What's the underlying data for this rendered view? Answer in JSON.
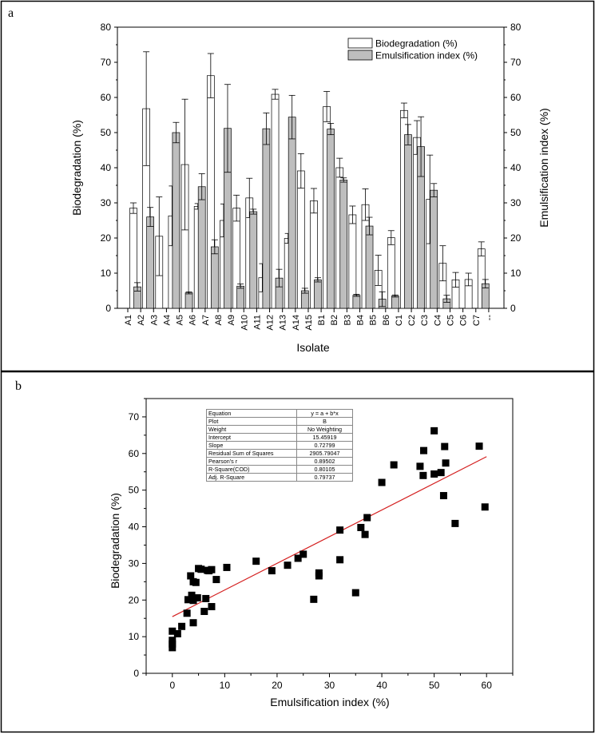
{
  "chart_data": [
    {
      "panel": "a",
      "type": "bar",
      "xlabel": "Isolate",
      "ylabel": "Biodegradation (%)",
      "y2label": "Emulsification index (%)",
      "ylim": [
        0,
        80
      ],
      "yticks": [
        "0",
        "10",
        "20",
        "30",
        "40",
        "50",
        "60",
        "70",
        "80"
      ],
      "categories": [
        "A1",
        "A2",
        "A3",
        "A4",
        "A5",
        "A6",
        "A7",
        "A8",
        "A9",
        "A10",
        "A11",
        "A12",
        "A13",
        "A14",
        "A15",
        "B1",
        "B2",
        "B3",
        "B4",
        "B5",
        "B6",
        "C1",
        "C2",
        "C3",
        "C4",
        "C5",
        "C6",
        "C7",
        "--"
      ],
      "legend_position": "top-right",
      "series": [
        {
          "name": "Biodegradation (%)",
          "color": "#ffffff",
          "values": [
            28.5,
            56.8,
            20.5,
            26.3,
            40.9,
            29,
            66.2,
            25,
            28.5,
            31.4,
            8.7,
            60.9,
            19.9,
            39.1,
            30.6,
            57.4,
            40,
            26.6,
            29.5,
            10.8,
            20.1,
            56.3,
            48.6,
            31,
            12.8,
            8.1,
            8.2,
            16.9,
            null
          ],
          "errors": [
            1.5,
            16.2,
            11.2,
            8.5,
            18.6,
            0.8,
            6.3,
            4.7,
            3.7,
            5.6,
            4,
            1.4,
            1.4,
            4.9,
            3.5,
            4.3,
            2.7,
            2.5,
            4.5,
            4.3,
            2,
            2.1,
            4.8,
            12.6,
            5,
            2.1,
            1.8,
            2,
            null
          ]
        },
        {
          "name": "Emulsification index (%)",
          "color": "#bebebe",
          "values": [
            6.1,
            26,
            null,
            50,
            4.4,
            34.6,
            17.5,
            51.2,
            6.3,
            27.5,
            51.1,
            8.6,
            54.4,
            5,
            8.1,
            51,
            36.5,
            3.7,
            23.4,
            2.6,
            3.5,
            49.4,
            46,
            33.6,
            2.7,
            null,
            null,
            7,
            null
          ],
          "errors": [
            1.2,
            2.7,
            null,
            2.9,
            0.3,
            3.7,
            2,
            12.5,
            0.6,
            0.7,
            4.5,
            2.5,
            6.2,
            0.7,
            0.6,
            1.6,
            0.6,
            0.3,
            2.5,
            2.1,
            0.3,
            2.9,
            8.5,
            1.9,
            1,
            null,
            null,
            1.2,
            null
          ]
        }
      ]
    },
    {
      "panel": "b",
      "type": "scatter",
      "xlabel": "Emulsification index (%)",
      "ylabel": "Biodegradation (%)",
      "xlim": [
        -5,
        65
      ],
      "ylim": [
        0,
        75
      ],
      "xticks": [
        "0",
        "10",
        "20",
        "30",
        "40",
        "50",
        "60"
      ],
      "yticks": [
        "0",
        "10",
        "20",
        "30",
        "40",
        "50",
        "60",
        "70"
      ],
      "line_color": "#d42020",
      "fit": {
        "intercept": 15.45919,
        "slope": 0.72799
      },
      "points": [
        [
          0,
          11.5
        ],
        [
          0,
          9
        ],
        [
          0,
          8
        ],
        [
          0,
          7
        ],
        [
          1,
          10.8
        ],
        [
          1.8,
          12.8
        ],
        [
          2.8,
          16.4
        ],
        [
          3,
          20.1
        ],
        [
          3.5,
          26.6
        ],
        [
          3.7,
          21.3
        ],
        [
          4,
          19.9
        ],
        [
          4,
          13.8
        ],
        [
          4,
          25
        ],
        [
          4.5,
          24.8
        ],
        [
          4.8,
          20.6
        ],
        [
          5,
          28.6
        ],
        [
          5.5,
          28.4
        ],
        [
          6.1,
          16.9
        ],
        [
          6.4,
          20.4
        ],
        [
          6.7,
          28.1
        ],
        [
          7,
          28
        ],
        [
          7.5,
          28.3
        ],
        [
          7.5,
          18.2
        ],
        [
          8.4,
          25.6
        ],
        [
          10.4,
          28.9
        ],
        [
          16,
          30.6
        ],
        [
          19,
          28
        ],
        [
          22,
          29.5
        ],
        [
          24,
          31.4
        ],
        [
          25,
          32.5
        ],
        [
          27,
          20.2
        ],
        [
          28,
          26.6
        ],
        [
          28,
          27.4
        ],
        [
          32,
          31
        ],
        [
          32,
          39.1
        ],
        [
          35,
          22
        ],
        [
          36,
          39.8
        ],
        [
          36.8,
          37.9
        ],
        [
          37.2,
          42.5
        ],
        [
          40,
          52.1
        ],
        [
          42.3,
          56.9
        ],
        [
          47.3,
          56.5
        ],
        [
          47.9,
          54
        ],
        [
          48,
          60.8
        ],
        [
          50,
          54.4
        ],
        [
          50,
          66.2
        ],
        [
          51.3,
          54.8
        ],
        [
          51.8,
          48.5
        ],
        [
          52,
          61.9
        ],
        [
          52.2,
          57.4
        ],
        [
          54,
          40.9
        ],
        [
          58.6,
          62
        ],
        [
          59.7,
          45.4
        ]
      ]
    }
  ],
  "stats_table": [
    {
      "label": "Equation",
      "value": "y = a + b*x"
    },
    {
      "label": "Plot",
      "value": "B"
    },
    {
      "label": "Weight",
      "value": "No Weighting"
    },
    {
      "label": "Intercept",
      "value": "15.45919"
    },
    {
      "label": "Slope",
      "value": "0.72799"
    },
    {
      "label": "Residual Sum of Squares",
      "value": "2905.79047"
    },
    {
      "label": "Pearson's r",
      "value": "0.89502"
    },
    {
      "label": "R-Square(COD)",
      "value": "0.80105"
    },
    {
      "label": "Adj. R-Square",
      "value": "0.79737"
    }
  ]
}
